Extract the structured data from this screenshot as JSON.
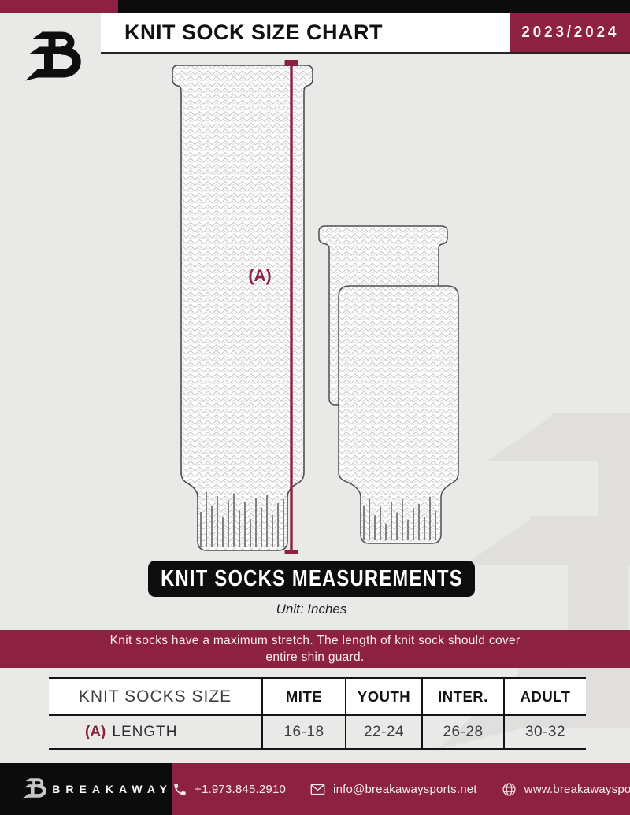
{
  "theme": {
    "maroon": "#8d2142",
    "black": "#0c0c0c",
    "page_background": "#e9e9e7",
    "knit_stroke": "#c9c9c9",
    "sock_outline": "#4f4f4f",
    "watermark_gray": "#dddcda"
  },
  "header": {
    "title": "KNIT SOCK SIZE CHART",
    "season": "2023/2024",
    "logo_icon": "breakaway-b-monogram"
  },
  "diagram": {
    "label_a": "(A)",
    "banner": "KNIT SOCKS MEASUREMENTS",
    "unit": "Unit: Inches"
  },
  "notice": {
    "line1": "Knit socks have a maximum stretch. The length of knit sock should cover",
    "line2": "entire shin guard."
  },
  "table": {
    "header": [
      "KNIT SOCKS SIZE",
      "MITE",
      "YOUTH",
      "INTER.",
      "ADULT"
    ],
    "rows": [
      {
        "label_prefix": "(A)",
        "label": "LENGTH",
        "values": [
          "16-18",
          "22-24",
          "26-28",
          "30-32"
        ]
      }
    ]
  },
  "footer": {
    "brand": "BREAKAWAY",
    "phone": "+1.973.845.2910",
    "email": "info@breakawaysports.net",
    "website": "www.breakawaysports.net",
    "phone_icon": "phone-handset",
    "email_icon": "envelope",
    "website_icon": "globe"
  }
}
